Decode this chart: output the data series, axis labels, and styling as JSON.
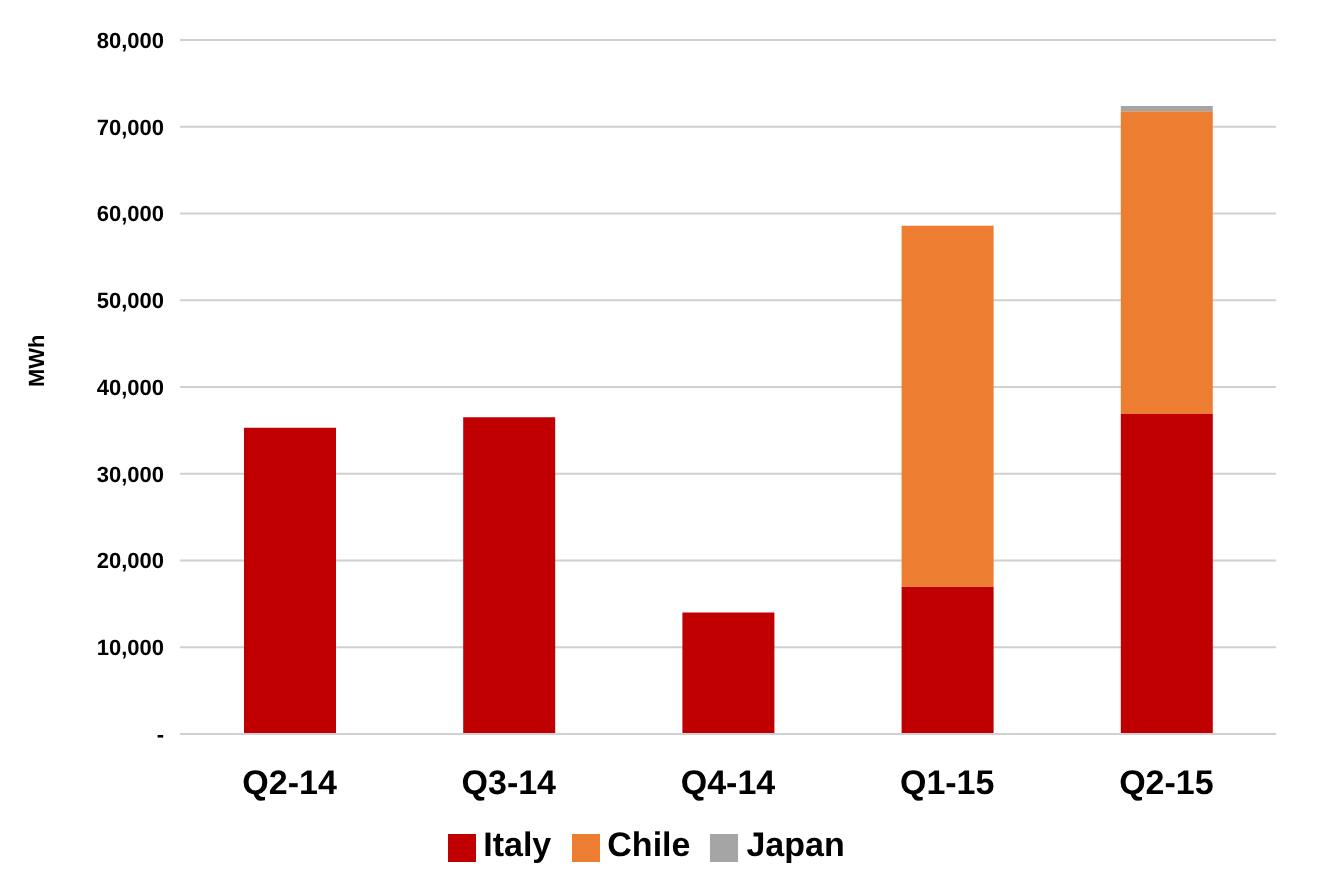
{
  "chart_data": {
    "type": "bar",
    "stacked": true,
    "ylabel": "MWh",
    "categories": [
      "Q2-14",
      "Q3-14",
      "Q4-14",
      "Q1-15",
      "Q2-15"
    ],
    "series": [
      {
        "name": "Italy",
        "color": "#c00000",
        "values": [
          35300,
          36500,
          14000,
          17000,
          36900
        ]
      },
      {
        "name": "Chile",
        "color": "#ed7d31",
        "values": [
          null,
          null,
          null,
          41600,
          34900
        ]
      },
      {
        "name": "Japan",
        "color": "#a5a5a5",
        "values": [
          null,
          null,
          null,
          null,
          600
        ]
      }
    ],
    "ylim": [
      0,
      80000
    ],
    "yticks": [
      {
        "value": 0,
        "label": "-"
      },
      {
        "value": 10000,
        "label": "10,000"
      },
      {
        "value": 20000,
        "label": "20,000"
      },
      {
        "value": 30000,
        "label": "30,000"
      },
      {
        "value": 40000,
        "label": "40,000"
      },
      {
        "value": 50000,
        "label": "50,000"
      },
      {
        "value": 60000,
        "label": "60,000"
      },
      {
        "value": 70000,
        "label": "70,000"
      },
      {
        "value": 80000,
        "label": "80,000"
      }
    ],
    "grid": "y",
    "legend": "bottom"
  }
}
